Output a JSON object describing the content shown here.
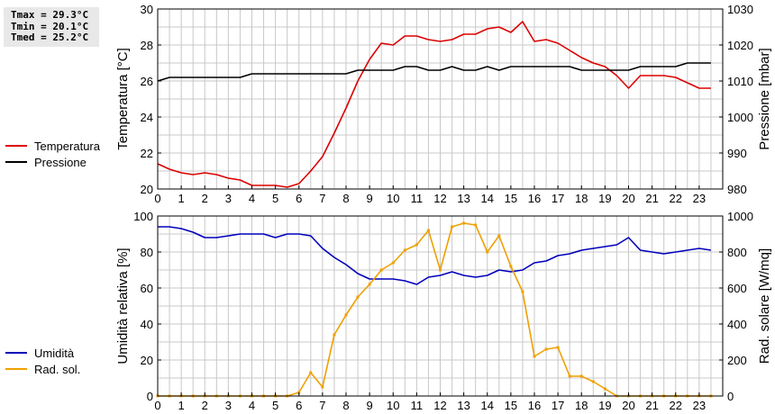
{
  "stats": {
    "tmax": "Tmax = 29.3°C",
    "tmin": "Tmin = 20.1°C",
    "tmed": "Tmed = 25.2°C"
  },
  "colors": {
    "temperature": "#dd0000",
    "pressure": "#000000",
    "humidity": "#0000bb",
    "radiation": "#eea000",
    "grid": "#c8c8c8"
  },
  "chart_data": [
    {
      "type": "line",
      "xlim": [
        0,
        24
      ],
      "x_ticks": [
        0,
        1,
        2,
        3,
        4,
        5,
        6,
        7,
        8,
        9,
        10,
        11,
        12,
        13,
        14,
        15,
        16,
        17,
        18,
        19,
        20,
        21,
        22,
        23
      ],
      "ylabel_left": "Temperatura [°C]",
      "ylabel_right": "Pressione [mbar]",
      "ylim_left": [
        20,
        30
      ],
      "ylim_right": [
        980,
        1030
      ],
      "yticks_left": [
        20,
        22,
        24,
        26,
        28,
        30
      ],
      "yticks_right": [
        980,
        990,
        1000,
        1010,
        1020,
        1030
      ],
      "grid": true,
      "legend": [
        "Temperatura",
        "Pressione"
      ],
      "series": [
        {
          "name": "Temperatura",
          "axis": "left",
          "x": [
            0,
            0.5,
            1,
            1.5,
            2,
            2.5,
            3,
            3.5,
            4,
            4.5,
            5,
            5.5,
            6,
            6.5,
            7,
            7.5,
            8,
            8.5,
            9,
            9.5,
            10,
            10.5,
            11,
            11.5,
            12,
            12.5,
            13,
            13.5,
            14,
            14.5,
            15,
            15.5,
            16,
            16.5,
            17,
            17.5,
            18,
            18.5,
            19,
            19.5,
            20,
            20.5,
            21,
            21.5,
            22,
            22.5,
            23,
            23.5
          ],
          "values": [
            21.4,
            21.1,
            20.9,
            20.8,
            20.9,
            20.8,
            20.6,
            20.5,
            20.2,
            20.2,
            20.2,
            20.1,
            20.3,
            21.0,
            21.8,
            23.1,
            24.5,
            26.0,
            27.2,
            28.1,
            28.0,
            28.5,
            28.5,
            28.3,
            28.2,
            28.3,
            28.6,
            28.6,
            28.9,
            29.0,
            28.7,
            29.3,
            28.2,
            28.3,
            28.1,
            27.7,
            27.3,
            27.0,
            26.8,
            26.3,
            25.6,
            26.3,
            26.3,
            26.3,
            26.2,
            25.9,
            25.6,
            25.6
          ]
        },
        {
          "name": "Pressione",
          "axis": "right",
          "x": [
            0,
            0.5,
            1,
            1.5,
            2,
            2.5,
            3,
            3.5,
            4,
            4.5,
            5,
            5.5,
            6,
            6.5,
            7,
            7.5,
            8,
            8.5,
            9,
            9.5,
            10,
            10.5,
            11,
            11.5,
            12,
            12.5,
            13,
            13.5,
            14,
            14.5,
            15,
            15.5,
            16,
            16.5,
            17,
            17.5,
            18,
            18.5,
            19,
            19.5,
            20,
            20.5,
            21,
            21.5,
            22,
            22.5,
            23,
            23.5
          ],
          "values": [
            1010,
            1011,
            1011,
            1011,
            1011,
            1011,
            1011,
            1011,
            1012,
            1012,
            1012,
            1012,
            1012,
            1012,
            1012,
            1012,
            1012,
            1013,
            1013,
            1013,
            1013,
            1014,
            1014,
            1013,
            1013,
            1014,
            1013,
            1013,
            1014,
            1013,
            1014,
            1014,
            1014,
            1014,
            1014,
            1014,
            1013,
            1013,
            1013,
            1013,
            1013,
            1014,
            1014,
            1014,
            1014,
            1015,
            1015,
            1015
          ]
        }
      ]
    },
    {
      "type": "line",
      "xlim": [
        0,
        24
      ],
      "x_ticks": [
        0,
        1,
        2,
        3,
        4,
        5,
        6,
        7,
        8,
        9,
        10,
        11,
        12,
        13,
        14,
        15,
        16,
        17,
        18,
        19,
        20,
        21,
        22,
        23
      ],
      "ylabel_left": "Umidità relativa [%]",
      "ylabel_right": "Rad. solare [W/mq]",
      "ylim_left": [
        0,
        100
      ],
      "ylim_right": [
        0,
        1000
      ],
      "yticks_left": [
        0,
        20,
        40,
        60,
        80,
        100
      ],
      "yticks_right": [
        0,
        200,
        400,
        600,
        800,
        1000
      ],
      "grid": true,
      "legend": [
        "Umidità",
        "Rad. sol."
      ],
      "series": [
        {
          "name": "Umidità",
          "axis": "left",
          "x": [
            0,
            0.5,
            1,
            1.5,
            2,
            2.5,
            3,
            3.5,
            4,
            4.5,
            5,
            5.5,
            6,
            6.5,
            7,
            7.5,
            8,
            8.5,
            9,
            9.5,
            10,
            10.5,
            11,
            11.5,
            12,
            12.5,
            13,
            13.5,
            14,
            14.5,
            15,
            15.5,
            16,
            16.5,
            17,
            17.5,
            18,
            18.5,
            19,
            19.5,
            20,
            20.5,
            21,
            21.5,
            22,
            22.5,
            23,
            23.5
          ],
          "values": [
            94,
            94,
            93,
            91,
            88,
            88,
            89,
            90,
            90,
            90,
            88,
            90,
            90,
            89,
            82,
            77,
            73,
            68,
            65,
            65,
            65,
            64,
            62,
            66,
            67,
            69,
            67,
            66,
            67,
            70,
            69,
            70,
            74,
            75,
            78,
            79,
            81,
            82,
            83,
            84,
            88,
            81,
            80,
            79,
            80,
            81,
            82,
            81
          ]
        },
        {
          "name": "Rad. sol.",
          "axis": "right",
          "x": [
            0,
            0.5,
            1,
            1.5,
            2,
            2.5,
            3,
            3.5,
            4,
            4.5,
            5,
            5.5,
            6,
            6.5,
            7,
            7.5,
            8,
            8.5,
            9,
            9.5,
            10,
            10.5,
            11,
            11.5,
            12,
            12.5,
            13,
            13.5,
            14,
            14.5,
            15,
            15.5,
            16,
            16.5,
            17,
            17.5,
            18,
            18.5,
            19,
            19.5,
            20,
            20.5,
            21,
            21.5,
            22,
            22.5,
            23,
            23.5
          ],
          "values": [
            0,
            0,
            0,
            0,
            0,
            0,
            0,
            0,
            0,
            0,
            0,
            0,
            20,
            130,
            50,
            340,
            450,
            550,
            620,
            700,
            740,
            810,
            840,
            920,
            700,
            940,
            960,
            950,
            800,
            890,
            720,
            580,
            220,
            260,
            270,
            110,
            110,
            80,
            40,
            0,
            0,
            0,
            0,
            0,
            0,
            0,
            0,
            0
          ]
        }
      ]
    }
  ]
}
